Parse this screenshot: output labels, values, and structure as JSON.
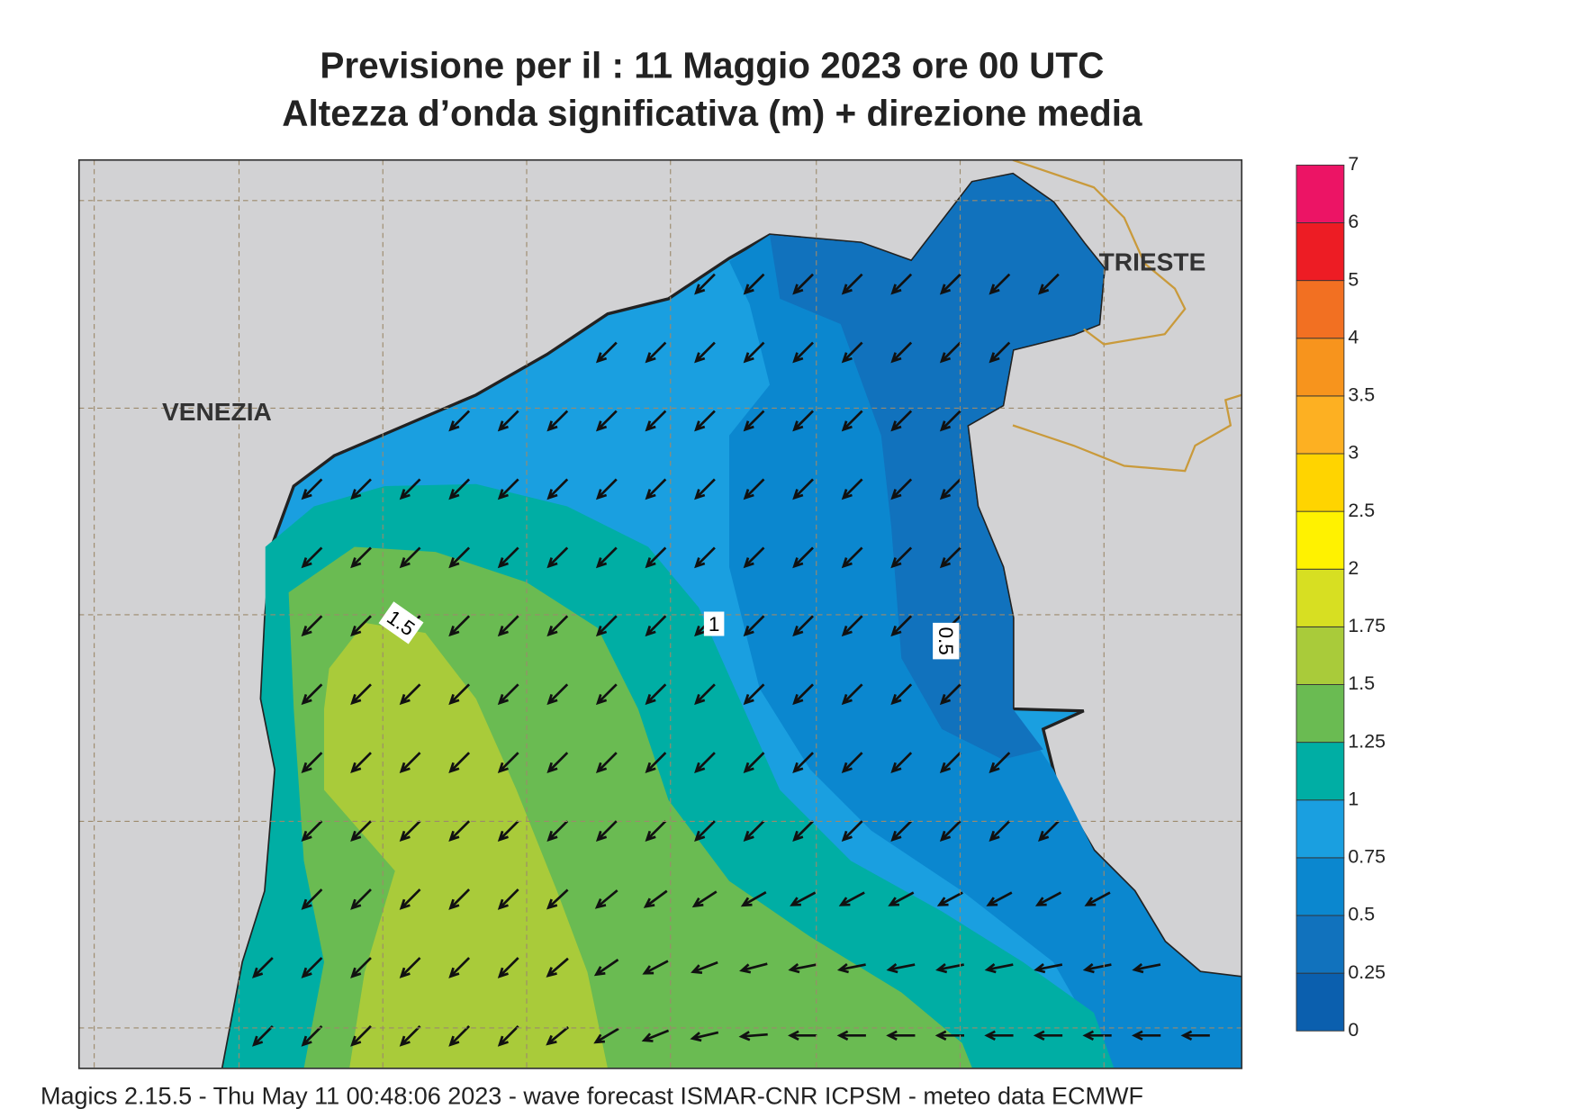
{
  "header": {
    "title": "Previsione per il  :  11   Maggio  2023   ore 00 UTC",
    "subtitle": "Altezza d’onda significativa (m) + direzione media"
  },
  "map": {
    "places": [
      "VENEZIA",
      "TRIESTE"
    ],
    "contour_labels": [
      "1.5",
      "1",
      "0.5"
    ]
  },
  "legend": {
    "ticks": [
      0,
      0.25,
      0.5,
      0.75,
      1,
      1.25,
      1.5,
      1.75,
      2,
      2.5,
      3,
      3.5,
      4,
      5,
      6,
      7
    ],
    "colors": [
      "#0b5fae",
      "#1172bd",
      "#0b87cf",
      "#1a9fe0",
      "#00aea4",
      "#6abb52",
      "#a9cb3a",
      "#d7df22",
      "#fff200",
      "#ffd400",
      "#fdb022",
      "#f7941d",
      "#f27022",
      "#ed1c24",
      "#ec1465"
    ]
  },
  "footer": "Magics 2.15.5 - Thu May 11 00:48:06 2023 - wave forecast  ISMAR-CNR  ICPSM - meteo data   ECMWF"
}
